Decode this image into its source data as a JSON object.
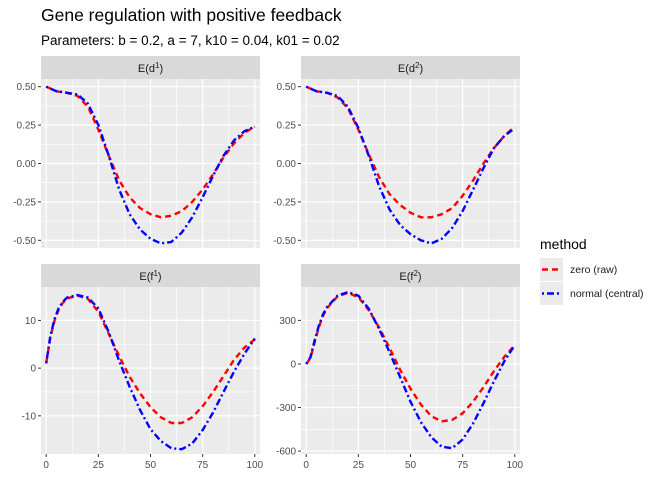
{
  "title": "Gene regulation with positive feedback",
  "subtitle": "Parameters: b = 0.2, a = 7, k10 = 0.04, k01 = 0.02",
  "legend": {
    "title": "method",
    "entries": [
      {
        "label": "zero (raw)",
        "color": "#ff0000",
        "dash": "dashed"
      },
      {
        "label": "normal (central)",
        "color": "#0000ff",
        "dash": "dotdash"
      }
    ]
  },
  "colors": {
    "panel_bg": "#ebebeb",
    "strip_bg": "#d9d9d9",
    "grid": "#ffffff"
  },
  "chart_data": [
    {
      "type": "line",
      "facet_label": "E(d",
      "facet_sup": "1",
      "xlim": [
        -2.5,
        102.5
      ],
      "ylim": [
        -0.55,
        0.55
      ],
      "xticks": [
        0,
        25,
        50,
        75,
        100
      ],
      "xtick_labels": [
        "0",
        "25",
        "50",
        "75",
        "100"
      ],
      "yticks": [
        0.5,
        0.25,
        0,
        -0.25,
        -0.5
      ],
      "ytick_labels": [
        "0.50",
        "0.25",
        "0.00",
        "-0.25",
        "-0.50"
      ],
      "series": [
        {
          "name": "zero (raw)",
          "color": "#ff0000",
          "x": [
            0,
            5,
            10,
            15,
            20,
            25,
            30,
            35,
            40,
            45,
            50,
            55,
            60,
            65,
            70,
            75,
            80,
            85,
            90,
            95,
            100
          ],
          "y": [
            0.5,
            0.47,
            0.46,
            0.44,
            0.37,
            0.22,
            0.05,
            -0.11,
            -0.22,
            -0.29,
            -0.33,
            -0.35,
            -0.34,
            -0.31,
            -0.25,
            -0.17,
            -0.07,
            0.04,
            0.13,
            0.2,
            0.24
          ]
        },
        {
          "name": "normal (central)",
          "color": "#0000ff",
          "x": [
            0,
            5,
            10,
            15,
            20,
            25,
            30,
            35,
            40,
            45,
            50,
            55,
            60,
            65,
            70,
            75,
            80,
            85,
            90,
            95,
            100
          ],
          "y": [
            0.5,
            0.47,
            0.46,
            0.45,
            0.39,
            0.25,
            0.05,
            -0.17,
            -0.33,
            -0.43,
            -0.49,
            -0.52,
            -0.51,
            -0.45,
            -0.35,
            -0.22,
            -0.08,
            0.05,
            0.15,
            0.21,
            0.24
          ]
        }
      ]
    },
    {
      "type": "line",
      "facet_label": "E(d",
      "facet_sup": "2",
      "xlim": [
        -2.5,
        102.5
      ],
      "ylim": [
        -0.55,
        0.55
      ],
      "xticks": [
        0,
        25,
        50,
        75,
        100
      ],
      "xtick_labels": [
        "0",
        "25",
        "50",
        "75",
        "100"
      ],
      "yticks": [
        0.5,
        0.25,
        0,
        -0.25,
        -0.5
      ],
      "ytick_labels": [
        "0.50",
        "0.25",
        "0.00",
        "-0.25",
        "-0.50"
      ],
      "series": [
        {
          "name": "zero (raw)",
          "color": "#ff0000",
          "x": [
            0,
            5,
            10,
            15,
            20,
            25,
            30,
            35,
            40,
            45,
            50,
            55,
            60,
            65,
            70,
            75,
            80,
            85,
            90,
            95,
            100
          ],
          "y": [
            0.5,
            0.47,
            0.46,
            0.43,
            0.36,
            0.22,
            0.06,
            -0.09,
            -0.2,
            -0.27,
            -0.32,
            -0.35,
            -0.35,
            -0.33,
            -0.29,
            -0.21,
            -0.11,
            0.0,
            0.1,
            0.18,
            0.24
          ]
        },
        {
          "name": "normal (central)",
          "color": "#0000ff",
          "x": [
            0,
            5,
            10,
            15,
            20,
            25,
            30,
            35,
            40,
            45,
            50,
            55,
            60,
            65,
            70,
            75,
            80,
            85,
            90,
            95,
            100
          ],
          "y": [
            0.5,
            0.47,
            0.46,
            0.44,
            0.37,
            0.23,
            0.05,
            -0.15,
            -0.3,
            -0.4,
            -0.46,
            -0.5,
            -0.52,
            -0.49,
            -0.42,
            -0.31,
            -0.17,
            -0.03,
            0.1,
            0.18,
            0.23
          ]
        }
      ]
    },
    {
      "type": "line",
      "facet_label": "E(f",
      "facet_sup": "1",
      "xlim": [
        -2.5,
        102.5
      ],
      "ylim": [
        -18,
        17
      ],
      "xticks": [
        0,
        25,
        50,
        75,
        100
      ],
      "xtick_labels": [
        "0",
        "25",
        "50",
        "75",
        "100"
      ],
      "yticks": [
        10,
        0,
        -10
      ],
      "ytick_labels": [
        "10",
        "0",
        "-10"
      ],
      "series": [
        {
          "name": "zero (raw)",
          "color": "#ff0000",
          "x": [
            0,
            2,
            4,
            6,
            8,
            10,
            15,
            20,
            25,
            30,
            35,
            40,
            45,
            50,
            55,
            60,
            65,
            70,
            75,
            80,
            85,
            90,
            95,
            100
          ],
          "y": [
            1.0,
            6.5,
            10.0,
            12.3,
            13.7,
            14.6,
            15.2,
            14.5,
            11.8,
            7.2,
            2.5,
            -1.8,
            -5.3,
            -8.2,
            -10.3,
            -11.5,
            -11.5,
            -10.3,
            -8.0,
            -5.0,
            -1.7,
            1.7,
            4.3,
            6.0
          ]
        },
        {
          "name": "normal (central)",
          "color": "#0000ff",
          "x": [
            0,
            2,
            4,
            6,
            8,
            10,
            15,
            20,
            25,
            30,
            35,
            40,
            45,
            50,
            55,
            60,
            65,
            70,
            75,
            80,
            85,
            90,
            95,
            100
          ],
          "y": [
            1.0,
            6.8,
            10.3,
            12.6,
            13.9,
            14.8,
            15.3,
            14.8,
            12.5,
            7.5,
            1.5,
            -3.9,
            -8.8,
            -12.8,
            -15.3,
            -16.8,
            -17.0,
            -15.8,
            -13.0,
            -9.3,
            -5.0,
            -0.8,
            3.0,
            6.2
          ]
        }
      ]
    },
    {
      "type": "line",
      "facet_label": "E(f",
      "facet_sup": "2",
      "xlim": [
        -2.5,
        102.5
      ],
      "ylim": [
        -620,
        530
      ],
      "xticks": [
        0,
        25,
        50,
        75,
        100
      ],
      "xtick_labels": [
        "0",
        "25",
        "50",
        "75",
        "100"
      ],
      "yticks": [
        300,
        0,
        -300,
        -600
      ],
      "ytick_labels": [
        "300",
        "0",
        "-300",
        "-600"
      ],
      "series": [
        {
          "name": "zero (raw)",
          "color": "#ff0000",
          "x": [
            0,
            2,
            4,
            6,
            8,
            10,
            15,
            20,
            25,
            30,
            35,
            40,
            45,
            50,
            55,
            60,
            65,
            70,
            75,
            80,
            85,
            90,
            95,
            100
          ],
          "y": [
            0,
            40,
            150,
            250,
            330,
            385,
            465,
            490,
            460,
            370,
            250,
            110,
            -40,
            -170,
            -280,
            -360,
            -395,
            -385,
            -340,
            -260,
            -160,
            -50,
            50,
            130
          ]
        },
        {
          "name": "normal (central)",
          "color": "#0000ff",
          "x": [
            0,
            2,
            4,
            6,
            8,
            10,
            15,
            20,
            25,
            30,
            35,
            40,
            45,
            50,
            55,
            60,
            65,
            70,
            75,
            80,
            85,
            90,
            95,
            100
          ],
          "y": [
            0,
            45,
            160,
            260,
            340,
            392,
            470,
            495,
            470,
            380,
            240,
            80,
            -90,
            -260,
            -400,
            -505,
            -570,
            -580,
            -520,
            -410,
            -270,
            -120,
            20,
            130
          ]
        }
      ]
    }
  ]
}
